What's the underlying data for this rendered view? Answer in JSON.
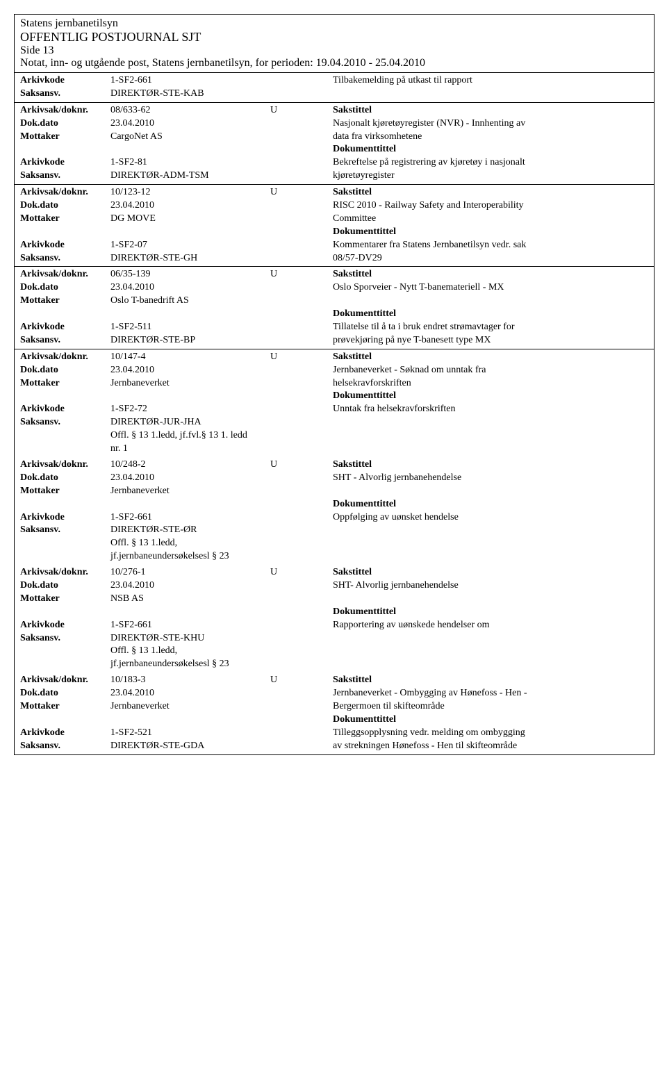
{
  "header": {
    "org": "Statens jernbanetilsyn",
    "title": "OFFENTLIG POSTJOURNAL SJT",
    "page": "Side 13",
    "subtitle": "Notat, inn- og utgående post, Statens jernbanetilsyn, for perioden: 19.04.2010 - 25.04.2010"
  },
  "labels": {
    "arkivkode": "Arkivkode",
    "saksansv": "Saksansv.",
    "arkivsak": "Arkivsak/doknr.",
    "dokdato": "Dok.dato",
    "mottaker": "Mottaker",
    "sakstittel": "Sakstittel",
    "dokumenttittel": "Dokumenttittel"
  },
  "topRecord": {
    "arkivkode": "1-SF2-661",
    "saksansv": "DIREKTØR-STE-KAB",
    "text": "Tilbakemelding på utkast til rapport"
  },
  "records": [
    {
      "arkivsak": "08/633-62",
      "uflag": "U",
      "dokdato": "23.04.2010",
      "mottaker": "CargoNet AS",
      "arkivkode": "1-SF2-81",
      "saksansv": "DIREKTØR-ADM-TSM",
      "sakstittel1": "Nasjonalt kjøretøyregister (NVR) - Innhenting av",
      "sakstittel2": "data fra virksomhetene",
      "doktittel1": "Bekreftelse på registrering av kjøretøy i nasjonalt",
      "doktittel2": "kjøretøyregister"
    },
    {
      "arkivsak": "10/123-12",
      "uflag": "U",
      "dokdato": "23.04.2010",
      "mottaker": "DG MOVE",
      "arkivkode": "1-SF2-07",
      "saksansv": "DIREKTØR-STE-GH",
      "sakstittel1": "RISC 2010 - Railway Safety and Interoperability",
      "sakstittel2": "Committee",
      "doktittel1": "Kommentarer fra Statens Jernbanetilsyn vedr. sak",
      "doktittel2": "08/57-DV29"
    },
    {
      "arkivsak": "06/35-139",
      "uflag": "U",
      "dokdato": "23.04.2010",
      "mottaker": "Oslo T-banedrift AS",
      "arkivkode": "1-SF2-511",
      "saksansv": "DIREKTØR-STE-BP",
      "sakstittel1": "Oslo Sporveier - Nytt T-banemateriell - MX",
      "sakstittel2": "",
      "doktittel1": "Tillatelse til å ta i bruk endret strømavtager for",
      "doktittel2": "prøvekjøring på nye T-banesett type MX"
    },
    {
      "arkivsak": "10/147-4",
      "uflag": "U",
      "dokdato": "23.04.2010",
      "mottaker": "Jernbaneverket",
      "arkivkode": "1-SF2-72",
      "saksansv": "DIREKTØR-JUR-JHA",
      "extra1": "Offl. § 13 1.ledd, jf.fvl.§ 13 1. ledd",
      "extra2": "nr. 1",
      "sakstittel1": "Jernbaneverket - Søknad om unntak fra",
      "sakstittel2": "helsekravforskriften",
      "doktittel1": "Unntak fra helsekravforskriften",
      "doktittel2": "",
      "noBorder": true
    },
    {
      "arkivsak": "10/248-2",
      "uflag": "U",
      "dokdato": "23.04.2010",
      "mottaker": "Jernbaneverket",
      "arkivkode": "1-SF2-661",
      "saksansv": "DIREKTØR-STE-ØR",
      "extra1": "Offl. § 13 1.ledd,",
      "extra2": "jf.jernbaneundersøkelsesl § 23",
      "sakstittel1": "SHT - Alvorlig jernbanehendelse",
      "sakstittel2": "",
      "doktittel1": "Oppfølging av uønsket hendelse",
      "doktittel2": "",
      "noBorder": true
    },
    {
      "arkivsak": "10/276-1",
      "uflag": "U",
      "dokdato": "23.04.2010",
      "mottaker": "NSB AS",
      "arkivkode": "1-SF2-661",
      "saksansv": "DIREKTØR-STE-KHU",
      "extra1": "Offl. § 13 1.ledd,",
      "extra2": "jf.jernbaneundersøkelsesl § 23",
      "sakstittel1": "SHT- Alvorlig jernbanehendelse",
      "sakstittel2": "",
      "doktittel1": "Rapportering av uønskede hendelser om",
      "doktittel2": "",
      "noBorder": true
    },
    {
      "arkivsak": "10/183-3",
      "uflag": "U",
      "dokdato": "23.04.2010",
      "mottaker": "Jernbaneverket",
      "arkivkode": "1-SF2-521",
      "saksansv": "DIREKTØR-STE-GDA",
      "sakstittel1": "Jernbaneverket - Ombygging av Hønefoss - Hen -",
      "sakstittel2": "Bergermoen til skifteområde",
      "doktittel1": "Tilleggsopplysning vedr. melding om ombygging",
      "doktittel2": "av strekningen Hønefoss - Hen til skifteområde"
    }
  ]
}
